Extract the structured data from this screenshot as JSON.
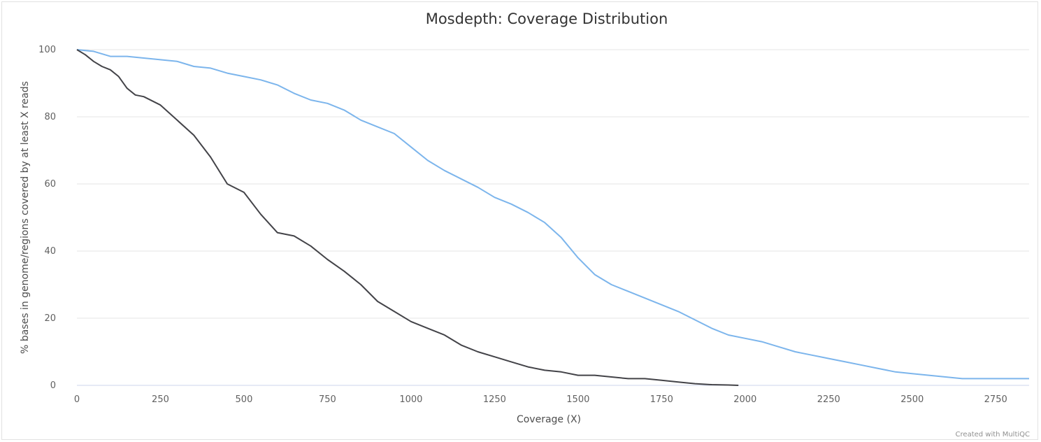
{
  "chart_data": {
    "type": "line",
    "title": "Mosdepth: Coverage Distribution",
    "xlabel": "Coverage (X)",
    "ylabel": "% bases in genome/regions covered by at least X reads",
    "xlim": [
      0,
      2850
    ],
    "ylim": [
      0,
      100
    ],
    "x_ticks": [
      "0",
      "250",
      "500",
      "750",
      "1000",
      "1250",
      "1500",
      "1750",
      "2000",
      "2250",
      "2500",
      "2750"
    ],
    "y_ticks": [
      "0",
      "20",
      "40",
      "60",
      "80",
      "100"
    ],
    "grid": "horizontal",
    "legend": "none",
    "series": [
      {
        "color": "#7cb5ec",
        "x": [
          0,
          50,
          100,
          150,
          200,
          250,
          300,
          350,
          400,
          450,
          500,
          550,
          600,
          650,
          700,
          750,
          800,
          850,
          900,
          950,
          1000,
          1050,
          1100,
          1150,
          1200,
          1250,
          1300,
          1350,
          1400,
          1450,
          1500,
          1550,
          1600,
          1650,
          1700,
          1750,
          1800,
          1850,
          1900,
          1950,
          2000,
          2050,
          2100,
          2150,
          2200,
          2250,
          2300,
          2350,
          2400,
          2450,
          2500,
          2550,
          2600,
          2650,
          2700,
          2750,
          2800,
          2850
        ],
        "y": [
          100,
          99.5,
          98,
          98,
          97.5,
          97,
          96.5,
          95,
          94.5,
          93,
          92,
          91,
          89.5,
          87,
          85,
          84,
          82,
          79,
          77,
          75,
          71,
          67,
          64,
          61.5,
          59,
          56,
          54,
          51.5,
          48.5,
          44,
          38,
          33,
          30,
          28,
          26,
          24,
          22,
          19.5,
          17,
          15,
          14,
          13,
          11.5,
          10,
          9,
          8,
          7,
          6,
          5,
          4,
          3.5,
          3,
          2.5,
          2,
          2,
          2,
          2,
          2
        ]
      },
      {
        "color": "#434348",
        "x": [
          0,
          25,
          50,
          75,
          100,
          125,
          150,
          175,
          200,
          250,
          300,
          350,
          400,
          450,
          500,
          550,
          600,
          650,
          700,
          750,
          800,
          850,
          900,
          950,
          1000,
          1050,
          1100,
          1150,
          1200,
          1250,
          1300,
          1350,
          1400,
          1450,
          1500,
          1550,
          1600,
          1650,
          1700,
          1750,
          1800,
          1850,
          1900,
          1950,
          1980
        ],
        "y": [
          100,
          98.5,
          96.5,
          95,
          94,
          92,
          88.5,
          86.5,
          86,
          83.5,
          79,
          74.5,
          68,
          60,
          57.5,
          51,
          45.5,
          44.5,
          41.5,
          37.5,
          34,
          30,
          25,
          22,
          19,
          17,
          15,
          12,
          10,
          8.5,
          7,
          5.5,
          4.5,
          4,
          3,
          3,
          2.5,
          2,
          2,
          1.5,
          1,
          0.5,
          0.2,
          0.1,
          0
        ]
      }
    ]
  },
  "credit": "Created with MultiQC"
}
